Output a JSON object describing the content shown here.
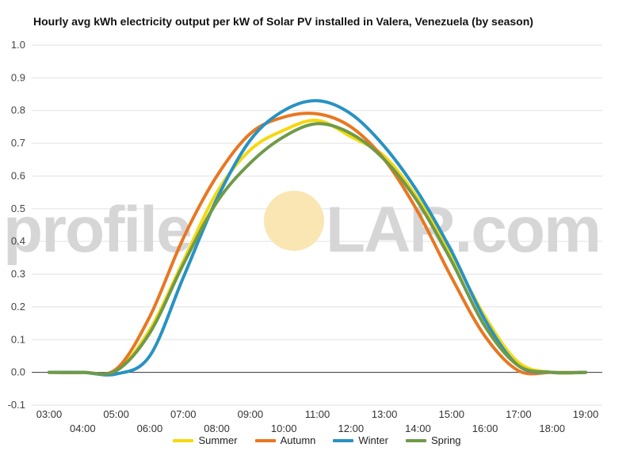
{
  "chart_data": {
    "type": "line",
    "title": "Hourly avg kWh electricity output per kW of Solar PV installed in Valera, Venezuela (by season)",
    "xlabel": "",
    "ylabel": "",
    "ylim": [
      -0.1,
      1.0
    ],
    "yticks": [
      "1.0",
      "0.9",
      "0.8",
      "0.7",
      "0.6",
      "0.5",
      "0.4",
      "0.3",
      "0.2",
      "0.1",
      "0.0",
      "-0.1"
    ],
    "categories": [
      "03:00",
      "04:00",
      "05:00",
      "06:00",
      "07:00",
      "08:00",
      "09:00",
      "10:00",
      "11:00",
      "12:00",
      "13:00",
      "14:00",
      "15:00",
      "16:00",
      "17:00",
      "18:00",
      "19:00"
    ],
    "grid": true,
    "legend_position": "bottom",
    "series": [
      {
        "name": "Summer",
        "color": "#f5d80f",
        "values": [
          0,
          0,
          0.005,
          0.13,
          0.34,
          0.55,
          0.68,
          0.74,
          0.77,
          0.72,
          0.66,
          0.53,
          0.36,
          0.17,
          0.03,
          0,
          0
        ]
      },
      {
        "name": "Autumn",
        "color": "#e87722",
        "values": [
          0,
          0,
          0.01,
          0.17,
          0.41,
          0.6,
          0.73,
          0.78,
          0.79,
          0.75,
          0.65,
          0.49,
          0.29,
          0.11,
          0.005,
          0,
          0
        ]
      },
      {
        "name": "Winter",
        "color": "#2892c2",
        "values": [
          0,
          0,
          -0.005,
          0.05,
          0.29,
          0.53,
          0.71,
          0.8,
          0.83,
          0.79,
          0.69,
          0.55,
          0.37,
          0.16,
          0.02,
          0,
          0
        ]
      },
      {
        "name": "Spring",
        "color": "#6f9a4a",
        "values": [
          0,
          0,
          0.005,
          0.12,
          0.33,
          0.52,
          0.64,
          0.72,
          0.76,
          0.73,
          0.65,
          0.52,
          0.34,
          0.14,
          0.02,
          0,
          0
        ]
      }
    ]
  },
  "watermark": {
    "text_left": "profile",
    "text_right": "LAR.com",
    "sun_color": "#f9e6b3"
  }
}
